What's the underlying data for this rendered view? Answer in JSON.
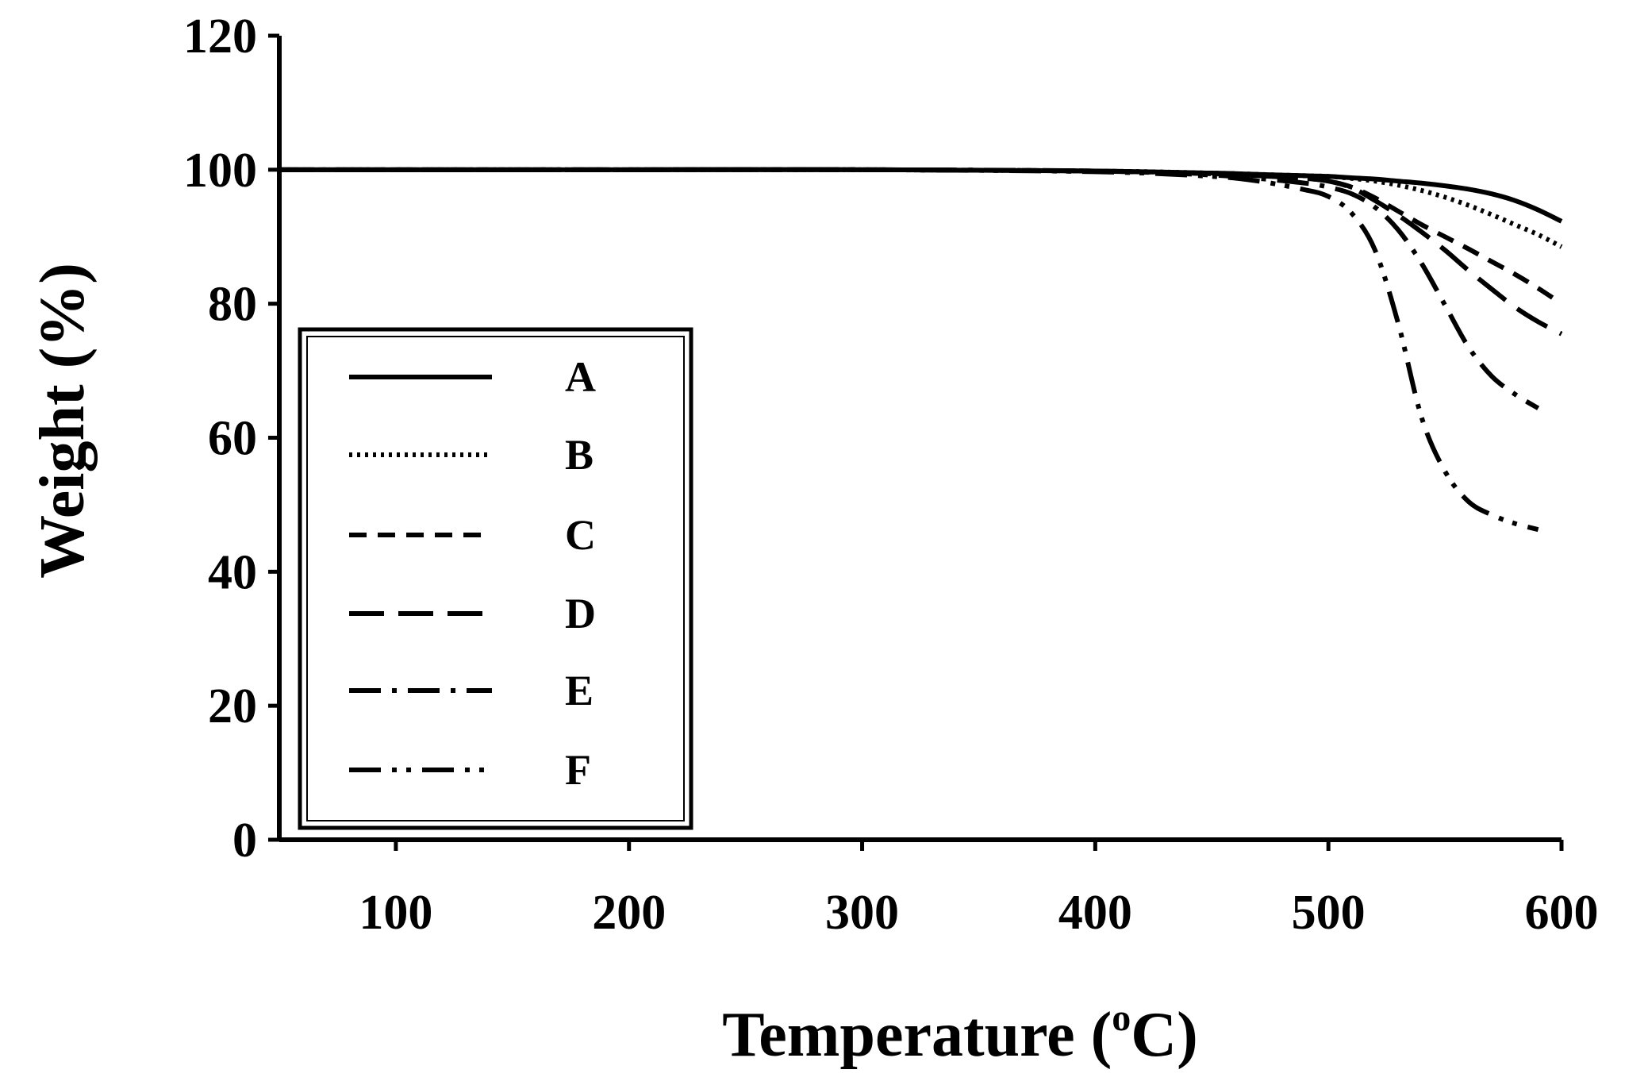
{
  "chart_data": {
    "type": "line",
    "title": "",
    "xlabel": "Temperature",
    "xlabel_unit_prefix": "(",
    "xlabel_unit_sup": "o",
    "xlabel_unit_suffix": "C)",
    "ylabel": "Weight (%)",
    "xlim": [
      50,
      600
    ],
    "ylim": [
      0,
      120
    ],
    "xticks": [
      100,
      200,
      300,
      400,
      500,
      600
    ],
    "yticks": [
      0,
      20,
      40,
      60,
      80,
      100,
      120
    ],
    "grid": false,
    "legend_position": "bottom-left",
    "x": [
      50,
      100,
      200,
      300,
      400,
      450,
      470,
      490,
      500,
      510,
      520,
      530,
      540,
      550,
      560,
      570,
      580,
      590,
      600
    ],
    "series": [
      {
        "name": "A",
        "dash": "solid",
        "values": [
          100,
          100,
          100,
          100,
          99.8,
          99.5,
          99.3,
          99.1,
          99.0,
          98.8,
          98.6,
          98.3,
          98.0,
          97.6,
          97.1,
          96.4,
          95.4,
          94.0,
          92.3
        ]
      },
      {
        "name": "B",
        "dash": "dotted",
        "values": [
          100,
          100,
          100,
          100,
          99.8,
          99.5,
          99.3,
          99.1,
          99.0,
          98.7,
          98.3,
          97.7,
          96.9,
          95.9,
          94.7,
          93.3,
          91.8,
          90.3,
          88.5
        ]
      },
      {
        "name": "C",
        "dash": "dashed",
        "values": [
          100,
          100,
          100,
          100,
          99.8,
          99.4,
          99.1,
          98.7,
          98.3,
          97.4,
          95.8,
          93.8,
          91.8,
          90.0,
          88.2,
          86.3,
          84.4,
          82.3,
          80.0
        ]
      },
      {
        "name": "D",
        "dash": "long-dashed",
        "values": [
          100,
          100,
          100,
          100,
          99.8,
          99.4,
          99.1,
          98.7,
          98.3,
          97.3,
          95.4,
          93.2,
          90.7,
          88.0,
          85.0,
          82.2,
          79.5,
          77.3,
          75.5
        ]
      },
      {
        "name": "E",
        "dash": "dash-dot",
        "values": [
          100,
          100,
          100,
          100,
          99.8,
          99.2,
          98.7,
          98.0,
          97.4,
          96.4,
          94.4,
          91.0,
          86.0,
          79.8,
          73.6,
          69.2,
          66.5,
          64.4,
          null
        ]
      },
      {
        "name": "F",
        "dash": "dash-dot-dot",
        "values": [
          100,
          100,
          100,
          100,
          99.7,
          99.0,
          98.3,
          97.0,
          96.0,
          93.5,
          88.0,
          77.0,
          63.0,
          55.0,
          50.5,
          48.5,
          47.2,
          46.3,
          null
        ]
      }
    ]
  }
}
